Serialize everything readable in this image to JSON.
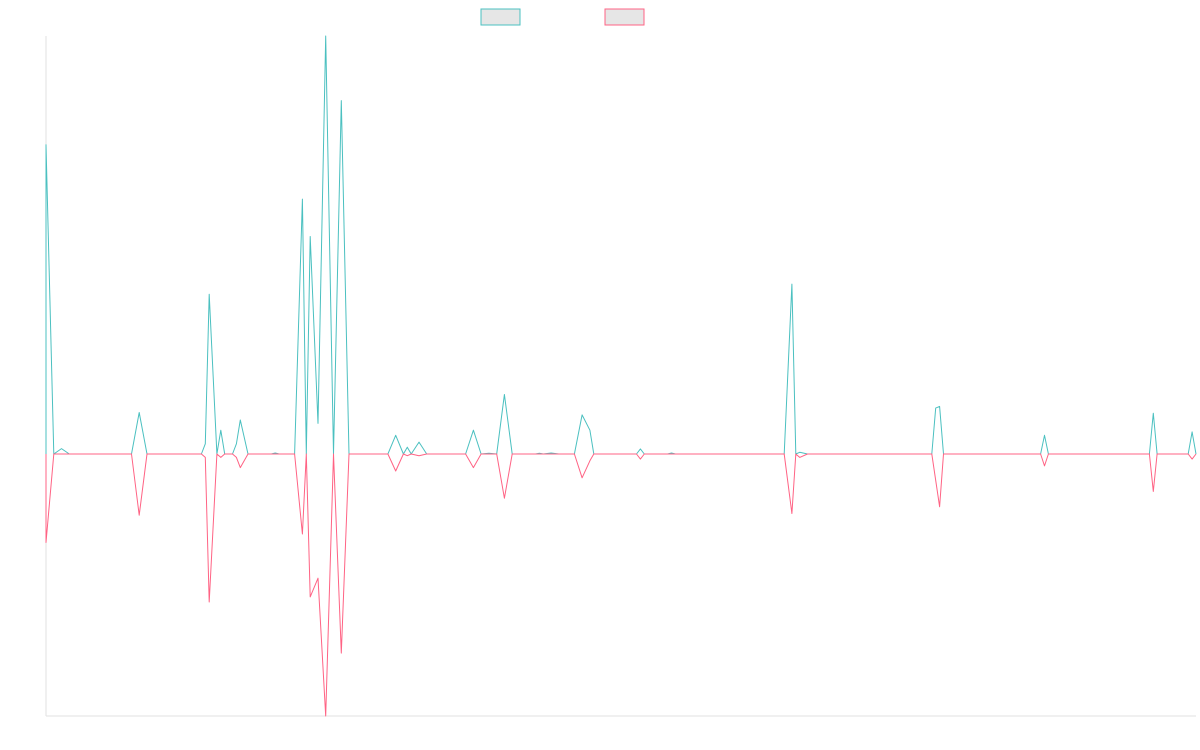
{
  "chart_data": {
    "type": "line",
    "title": "",
    "xlabel": "",
    "ylabel": "",
    "x_range": [
      0,
      148
    ],
    "ylim": [
      -100,
      100
    ],
    "grid": false,
    "legend_placement": "top-center",
    "series": [
      {
        "color": "#4bc0c0",
        "legend_fill": "#e6e6e6",
        "points": [
          [
            0,
            0
          ],
          [
            0,
            91
          ],
          [
            1,
            0
          ],
          [
            2,
            1.6
          ],
          [
            3,
            0
          ],
          [
            11,
            0
          ],
          [
            12,
            12.2
          ],
          [
            13,
            0
          ],
          [
            20,
            0
          ],
          [
            20.5,
            3
          ],
          [
            21,
            47
          ],
          [
            22,
            0
          ],
          [
            22.5,
            7
          ],
          [
            23,
            0
          ],
          [
            24,
            0
          ],
          [
            24.5,
            3
          ],
          [
            25,
            10
          ],
          [
            26,
            0
          ],
          [
            29,
            0
          ],
          [
            29.5,
            0.3
          ],
          [
            30,
            0
          ],
          [
            32,
            0
          ],
          [
            33,
            75
          ],
          [
            33.5,
            0
          ],
          [
            34,
            64
          ],
          [
            35,
            9
          ],
          [
            36,
            123
          ],
          [
            37,
            0
          ],
          [
            38,
            104
          ],
          [
            39,
            0
          ],
          [
            44,
            0
          ],
          [
            45,
            5.5
          ],
          [
            46,
            0
          ],
          [
            46.5,
            2
          ],
          [
            47,
            0
          ],
          [
            48,
            3.5
          ],
          [
            49,
            0
          ],
          [
            54,
            0
          ],
          [
            55,
            7
          ],
          [
            56,
            0
          ],
          [
            57,
            0.2
          ],
          [
            58,
            0
          ],
          [
            59,
            17.5
          ],
          [
            60,
            0
          ],
          [
            63,
            0
          ],
          [
            63.5,
            0.2
          ],
          [
            64,
            0
          ],
          [
            65,
            0.3
          ],
          [
            66,
            0
          ],
          [
            68,
            0
          ],
          [
            69,
            11.5
          ],
          [
            70,
            7
          ],
          [
            70.5,
            0
          ],
          [
            76,
            0
          ],
          [
            76.5,
            1.5
          ],
          [
            77,
            0
          ],
          [
            80,
            0
          ],
          [
            80.5,
            0.3
          ],
          [
            81,
            0
          ],
          [
            95,
            0
          ],
          [
            96,
            50
          ],
          [
            96.5,
            0
          ],
          [
            97,
            0.5
          ],
          [
            98,
            0
          ],
          [
            114,
            0
          ],
          [
            114.5,
            13.5
          ],
          [
            115,
            14
          ],
          [
            115.5,
            0
          ],
          [
            128,
            0
          ],
          [
            128.5,
            5.5
          ],
          [
            129,
            0
          ],
          [
            142,
            0
          ],
          [
            142.5,
            12
          ],
          [
            143,
            0
          ],
          [
            147,
            0
          ],
          [
            147.5,
            6.5
          ],
          [
            148,
            0
          ]
        ]
      },
      {
        "color": "#ff6384",
        "legend_fill": "#e6e6e6",
        "points": [
          [
            0,
            0
          ],
          [
            0,
            -26
          ],
          [
            1,
            0
          ],
          [
            11,
            0
          ],
          [
            12,
            -18
          ],
          [
            13,
            0
          ],
          [
            20,
            0
          ],
          [
            20.5,
            -1
          ],
          [
            21,
            -43.5
          ],
          [
            22,
            0
          ],
          [
            22.5,
            -1
          ],
          [
            23,
            0
          ],
          [
            24,
            0
          ],
          [
            24.5,
            -1
          ],
          [
            25,
            -4
          ],
          [
            26,
            0
          ],
          [
            32,
            0
          ],
          [
            33,
            -23.5
          ],
          [
            33.5,
            0
          ],
          [
            34,
            -42
          ],
          [
            35,
            -36.5
          ],
          [
            36,
            -77
          ],
          [
            37,
            0
          ],
          [
            38,
            -58.5
          ],
          [
            39,
            0
          ],
          [
            44,
            0
          ],
          [
            45,
            -5
          ],
          [
            46,
            0
          ],
          [
            46.5,
            -0.5
          ],
          [
            47,
            0
          ],
          [
            48,
            -0.5
          ],
          [
            49,
            0
          ],
          [
            54,
            0
          ],
          [
            55,
            -4
          ],
          [
            56,
            0
          ],
          [
            58,
            0
          ],
          [
            59,
            -13
          ],
          [
            60,
            0
          ],
          [
            68,
            0
          ],
          [
            69,
            -7
          ],
          [
            70,
            -2
          ],
          [
            70.5,
            0
          ],
          [
            76,
            0
          ],
          [
            76.5,
            -1.5
          ],
          [
            77,
            0
          ],
          [
            95,
            0
          ],
          [
            96,
            -17.5
          ],
          [
            96.5,
            0
          ],
          [
            97,
            -1
          ],
          [
            98,
            0
          ],
          [
            114,
            0
          ],
          [
            115,
            -15.5
          ],
          [
            115.5,
            0
          ],
          [
            128,
            0
          ],
          [
            128.5,
            -3.5
          ],
          [
            129,
            0
          ],
          [
            142,
            0
          ],
          [
            142.5,
            -11
          ],
          [
            143,
            0
          ],
          [
            147,
            0
          ],
          [
            147.5,
            -1.5
          ],
          [
            148,
            0
          ]
        ]
      }
    ]
  }
}
